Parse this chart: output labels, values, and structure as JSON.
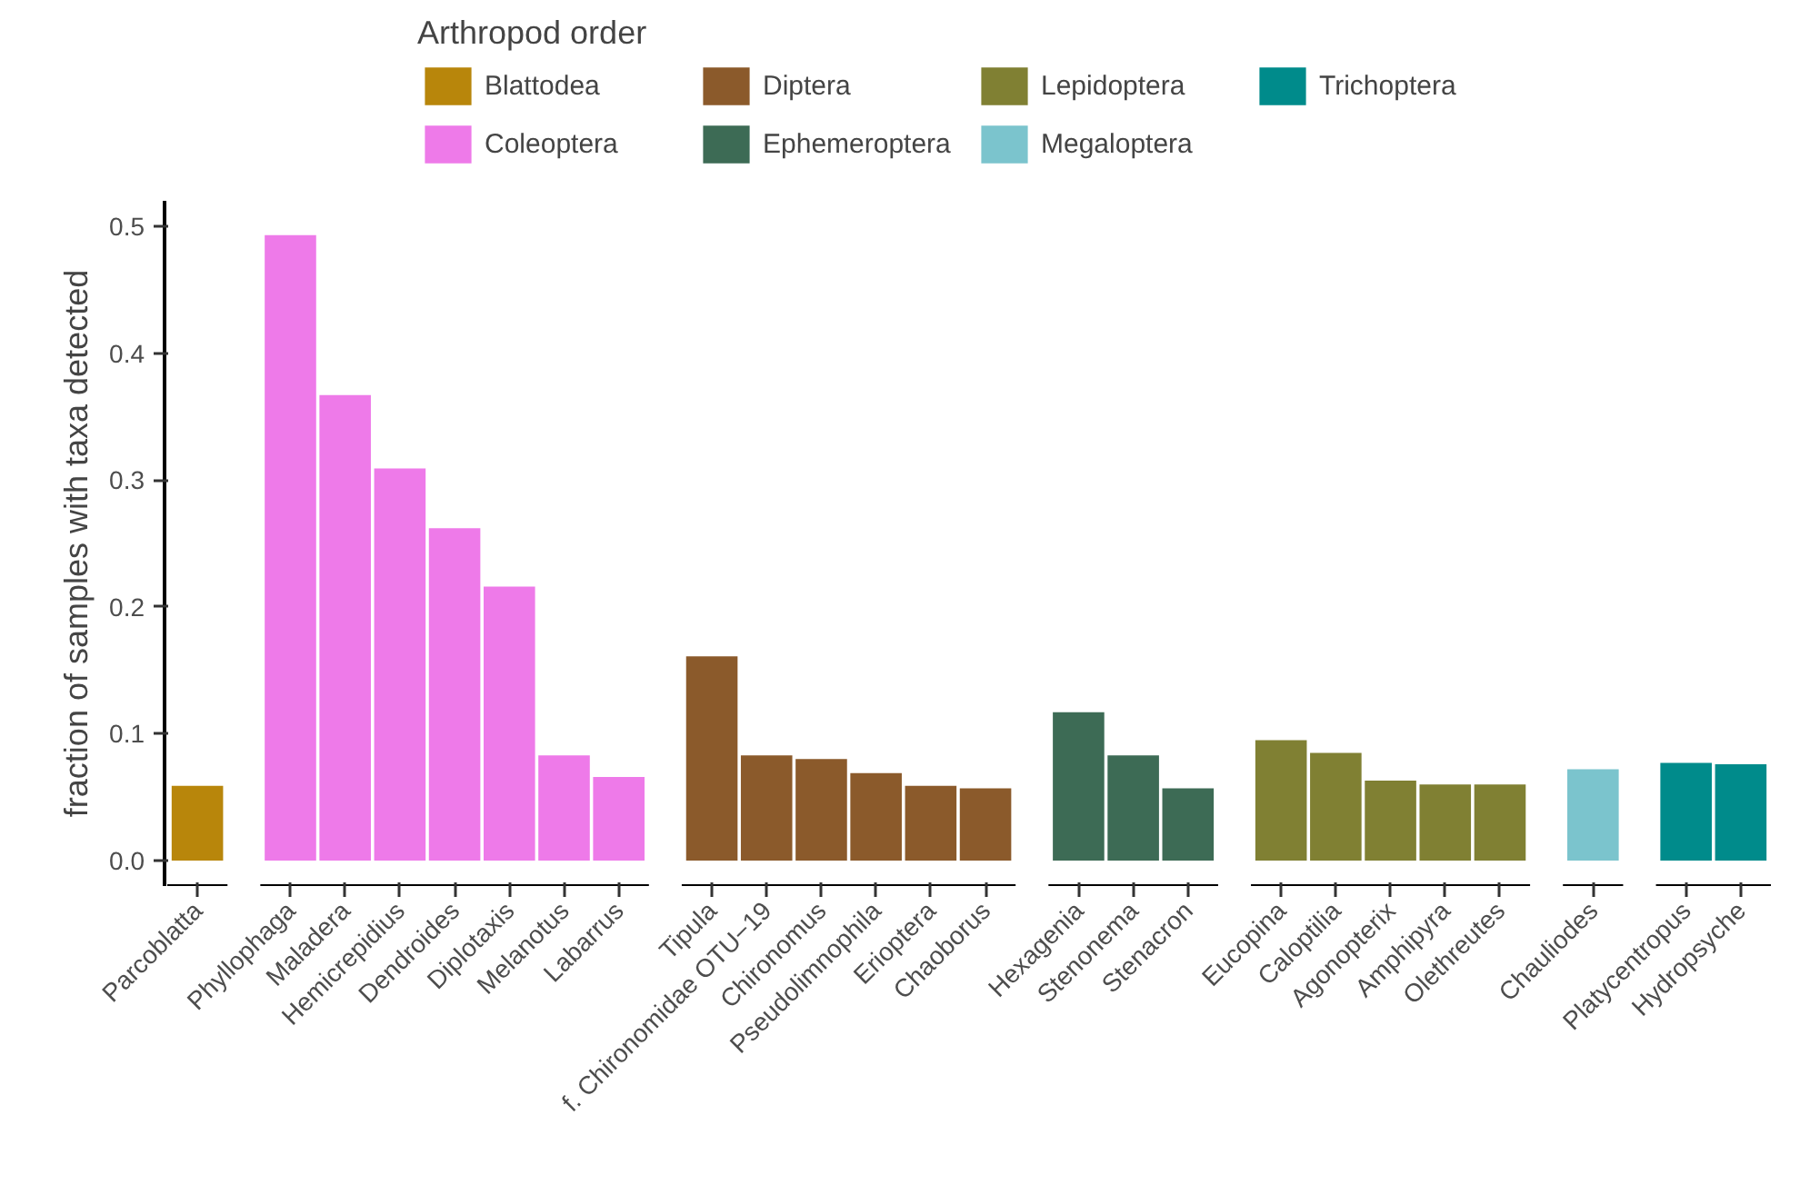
{
  "chart_data": {
    "type": "bar",
    "ylabel": "fraction of samples with taxa detected",
    "legend_title": "Arthropod order",
    "legend": "top",
    "categories": [
      "Parcoblatta",
      "Phyllophaga",
      "Maladera",
      "Hemicrepidius",
      "Dendroides",
      "Diplotaxis",
      "Melanotus",
      "Labarrus",
      "Tipula",
      "f. Chironomidae OTU−19",
      "Chironomus",
      "Pseudolimnophila",
      "Erioptera",
      "Chaoborus",
      "Hexagenia",
      "Stenonema",
      "Stenacron",
      "Eucopina",
      "Caloptilia",
      "Agonopterix",
      "Amphipyra",
      "Olethreutes",
      "Chauliodes",
      "Platycentropus",
      "Hydropsyche"
    ],
    "series": [
      {
        "name": "Blattodea",
        "color": "#b8860b",
        "values": [
          0.059,
          null,
          null,
          null,
          null,
          null,
          null,
          null,
          null,
          null,
          null,
          null,
          null,
          null,
          null,
          null,
          null,
          null,
          null,
          null,
          null,
          null,
          null,
          null,
          null
        ]
      },
      {
        "name": "Coleoptera",
        "color": "#ee7ae9",
        "values": [
          null,
          0.493,
          0.367,
          0.309,
          0.262,
          0.216,
          0.083,
          0.066,
          null,
          null,
          null,
          null,
          null,
          null,
          null,
          null,
          null,
          null,
          null,
          null,
          null,
          null,
          null,
          null,
          null
        ]
      },
      {
        "name": "Diptera",
        "color": "#8b5a2b",
        "values": [
          null,
          null,
          null,
          null,
          null,
          null,
          null,
          null,
          0.161,
          0.083,
          0.08,
          0.069,
          0.059,
          0.057,
          null,
          null,
          null,
          null,
          null,
          null,
          null,
          null,
          null,
          null,
          null
        ]
      },
      {
        "name": "Ephemeroptera",
        "color": "#3d6b55",
        "values": [
          null,
          null,
          null,
          null,
          null,
          null,
          null,
          null,
          null,
          null,
          null,
          null,
          null,
          null,
          0.117,
          0.083,
          0.057,
          null,
          null,
          null,
          null,
          null,
          null,
          null,
          null
        ]
      },
      {
        "name": "Lepidoptera",
        "color": "#808033",
        "values": [
          null,
          null,
          null,
          null,
          null,
          null,
          null,
          null,
          null,
          null,
          null,
          null,
          null,
          null,
          null,
          null,
          null,
          0.095,
          0.085,
          0.063,
          0.06,
          0.06,
          null,
          null,
          null
        ]
      },
      {
        "name": "Megaloptera",
        "color": "#7bc4cd",
        "values": [
          null,
          null,
          null,
          null,
          null,
          null,
          null,
          null,
          null,
          null,
          null,
          null,
          null,
          null,
          null,
          null,
          null,
          null,
          null,
          null,
          null,
          null,
          0.072,
          null,
          null
        ]
      },
      {
        "name": "Trichoptera",
        "color": "#008b8b",
        "values": [
          null,
          null,
          null,
          null,
          null,
          null,
          null,
          null,
          null,
          null,
          null,
          null,
          null,
          null,
          null,
          null,
          null,
          null,
          null,
          null,
          null,
          null,
          null,
          0.077,
          0.076
        ]
      }
    ],
    "ylim": [
      -0.02,
      0.52
    ],
    "yticks": [
      {
        "value": 0,
        "label": "0.0"
      },
      0.1,
      0.2,
      0.3,
      0.4,
      0.5
    ],
    "grid": false
  }
}
